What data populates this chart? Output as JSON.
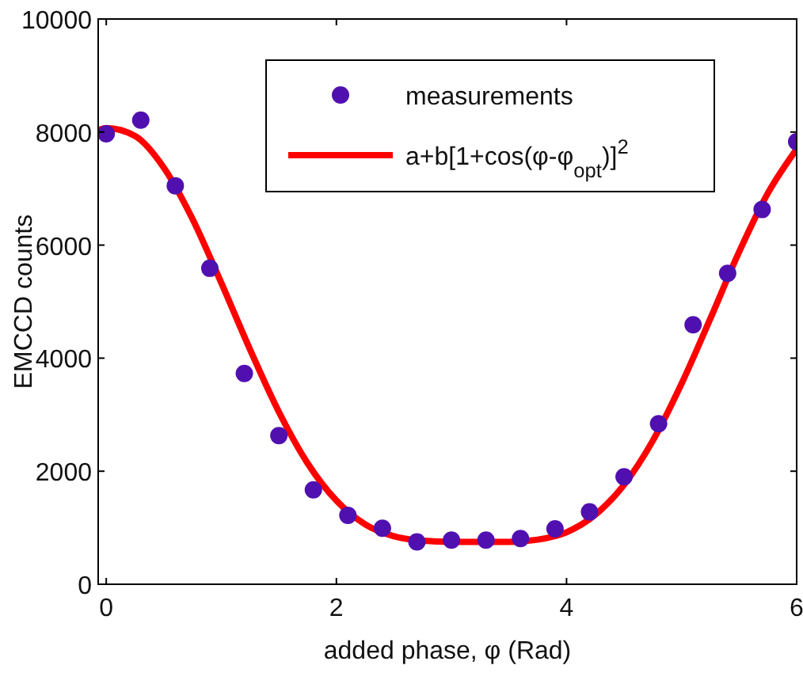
{
  "chart_data": {
    "type": "scatter",
    "xlabel": "added phase, φ (Rad)",
    "ylabel": "EMCCD counts",
    "xlim": [
      -0.07,
      6
    ],
    "ylim": [
      0,
      10000
    ],
    "xticks": [
      0,
      2,
      4,
      6
    ],
    "yticks": [
      0,
      2000,
      4000,
      6000,
      8000,
      10000
    ],
    "grid": false,
    "legend": "top",
    "series": [
      {
        "name": "measurements",
        "marker": "circle",
        "color": "#5010b0",
        "x": [
          0,
          0.3,
          0.6,
          0.9,
          1.2,
          1.5,
          1.8,
          2.1,
          2.4,
          2.7,
          3.0,
          3.3,
          3.6,
          3.9,
          4.2,
          4.5,
          4.8,
          5.1,
          5.4,
          5.7,
          6.0
        ],
        "values": [
          7970,
          8210,
          7050,
          5590,
          3730,
          2630,
          1670,
          1220,
          990,
          750,
          780,
          780,
          810,
          980,
          1280,
          1900,
          2840,
          4590,
          5500,
          6630,
          7830
        ]
      },
      {
        "name": "a+b[1+cos(φ-φ$_{opt}$)]$^{2}$",
        "type": "line",
        "marker": "none",
        "color": "#ff0000",
        "line_style": "solid",
        "x": [
          -0.07,
          0,
          0.25,
          0.5,
          0.75,
          1.0,
          1.25,
          1.5,
          1.75,
          2.0,
          2.25,
          2.5,
          2.75,
          3.0,
          3.25,
          3.5,
          3.75,
          4.0,
          4.25,
          4.5,
          4.75,
          5.0,
          5.25,
          5.5,
          5.75,
          6.0
        ],
        "values": [
          8030,
          8070,
          7930,
          7370,
          6460,
          5330,
          4150,
          3050,
          2140,
          1480,
          1060,
          850,
          770,
          750,
          750,
          750,
          790,
          920,
          1230,
          1760,
          2540,
          3550,
          4700,
          5880,
          6920,
          7700
        ]
      }
    ]
  }
}
